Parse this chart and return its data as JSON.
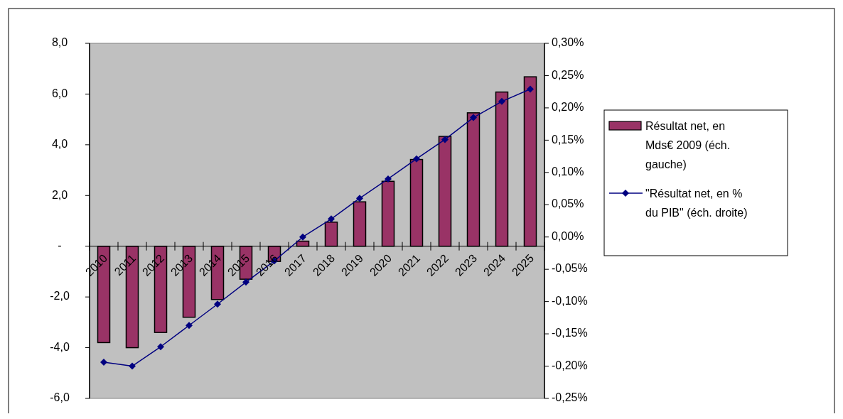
{
  "chart_data": {
    "type": "bar",
    "categories": [
      "2010",
      "2011",
      "2012",
      "2013",
      "2014",
      "2015",
      "2016",
      "2017",
      "2018",
      "2019",
      "2020",
      "2021",
      "2022",
      "2023",
      "2024",
      "2025"
    ],
    "series": [
      {
        "name": "Résultat net, en Mds€ 2009 (éch. gauche)",
        "color": "#993366",
        "values": [
          -3.8,
          -4.0,
          -3.4,
          -2.8,
          -2.1,
          -1.3,
          -0.6,
          0.2,
          0.95,
          1.75,
          2.56,
          3.42,
          4.33,
          5.26,
          6.08,
          6.68
        ]
      },
      {
        "name": "\"Résultat net, en % du PIB\" (éch. droite)",
        "type": "line",
        "axis": "y2",
        "color": "#000080",
        "marker": "diamond",
        "values": [
          -0.194,
          -0.2,
          -0.17,
          -0.137,
          -0.104,
          -0.07,
          -0.037,
          0.0,
          0.028,
          0.06,
          0.09,
          0.121,
          0.151,
          0.185,
          0.21,
          0.229
        ]
      }
    ],
    "ylim": [
      -6,
      8
    ],
    "yticks": [
      {
        "value": -6,
        "label": "-6,0"
      },
      {
        "value": -4,
        "label": "-4,0"
      },
      {
        "value": -2,
        "label": "-2,0"
      },
      {
        "value": 0,
        "label": "-"
      },
      {
        "value": 2,
        "label": "2,0"
      },
      {
        "value": 4,
        "label": "4,0"
      },
      {
        "value": 6,
        "label": "6,0"
      },
      {
        "value": 8,
        "label": "8,0"
      }
    ],
    "y2lim": [
      -0.25,
      0.3
    ],
    "y2ticks": [
      {
        "value": -0.25,
        "label": "-0,25%"
      },
      {
        "value": -0.2,
        "label": "-0,20%"
      },
      {
        "value": -0.15,
        "label": "-0,15%"
      },
      {
        "value": -0.1,
        "label": "-0,10%"
      },
      {
        "value": -0.05,
        "label": "-0,05%"
      },
      {
        "value": 0,
        "label": "0,00%"
      },
      {
        "value": 0.05,
        "label": "0,05%"
      },
      {
        "value": 0.1,
        "label": "0,10%"
      },
      {
        "value": 0.15,
        "label": "0,15%"
      },
      {
        "value": 0.2,
        "label": "0,20%"
      },
      {
        "value": 0.25,
        "label": "0,25%"
      },
      {
        "value": 0.3,
        "label": "0,30%"
      }
    ],
    "grid": false,
    "legend": "right"
  }
}
